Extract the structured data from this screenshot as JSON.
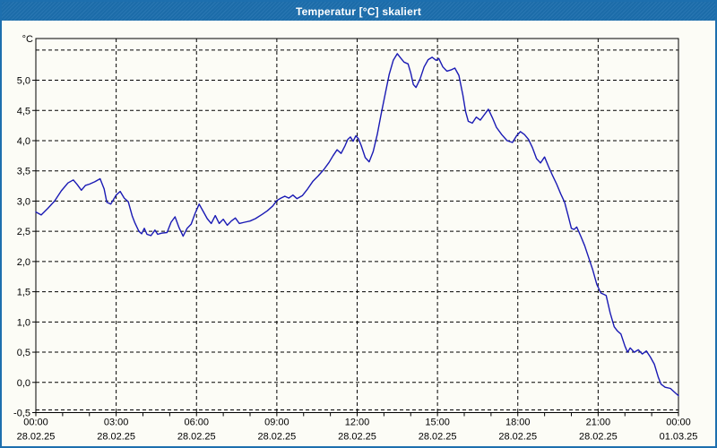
{
  "window": {
    "title": "Temperatur [°C] skaliert",
    "titlebar_color": "#1d6fae",
    "border_color": "#1d6fae",
    "background": "#fcfcf6"
  },
  "chart_data": {
    "type": "line",
    "title": "Temperatur [°C] skaliert",
    "unit_label": "°C",
    "line_color": "#1a1ab4",
    "grid": "dashed black, every 0.5 °C and every 3 hours",
    "legend": "none",
    "xlim_hours": [
      0,
      24
    ],
    "ylim": [
      -0.5,
      5.69
    ],
    "yticks": [
      5.5,
      5.0,
      4.5,
      4.0,
      3.5,
      3.0,
      2.5,
      2.0,
      1.5,
      1.0,
      0.5,
      0.0,
      -0.5
    ],
    "ytick_labels": [
      "",
      "5,0",
      "4,5",
      "4,0",
      "3,5",
      "3,0",
      "2,5",
      "2,0",
      "1,5",
      "1,0",
      "0,5",
      "0,0",
      "-0,5"
    ],
    "xticks": [
      {
        "h": 0,
        "time": "00:00",
        "date": "28.02.25"
      },
      {
        "h": 3,
        "time": "03:00",
        "date": "28.02.25"
      },
      {
        "h": 6,
        "time": "06:00",
        "date": "28.02.25"
      },
      {
        "h": 9,
        "time": "09:00",
        "date": "28.02.25"
      },
      {
        "h": 12,
        "time": "12:00",
        "date": "28.02.25"
      },
      {
        "h": 15,
        "time": "15:00",
        "date": "28.02.25"
      },
      {
        "h": 18,
        "time": "18:00",
        "date": "28.02.25"
      },
      {
        "h": 21,
        "time": "21:00",
        "date": "28.02.25"
      },
      {
        "h": 24,
        "time": "00:00",
        "date": "01.03.25"
      }
    ],
    "minor_xtick_every_hours": 1,
    "points": [
      [
        0,
        2.82
      ],
      [
        0.2,
        2.77
      ],
      [
        0.45,
        2.88
      ],
      [
        0.7,
        3.0
      ],
      [
        0.95,
        3.17
      ],
      [
        1.2,
        3.3
      ],
      [
        1.4,
        3.35
      ],
      [
        1.55,
        3.27
      ],
      [
        1.7,
        3.18
      ],
      [
        1.85,
        3.26
      ],
      [
        2.0,
        3.28
      ],
      [
        2.2,
        3.32
      ],
      [
        2.4,
        3.37
      ],
      [
        2.55,
        3.2
      ],
      [
        2.65,
        2.98
      ],
      [
        2.8,
        2.95
      ],
      [
        3.0,
        3.1
      ],
      [
        3.15,
        3.16
      ],
      [
        3.3,
        3.05
      ],
      [
        3.45,
        2.99
      ],
      [
        3.6,
        2.75
      ],
      [
        3.7,
        2.64
      ],
      [
        3.85,
        2.5
      ],
      [
        3.95,
        2.46
      ],
      [
        4.05,
        2.55
      ],
      [
        4.15,
        2.45
      ],
      [
        4.3,
        2.43
      ],
      [
        4.45,
        2.52
      ],
      [
        4.55,
        2.45
      ],
      [
        4.7,
        2.47
      ],
      [
        4.9,
        2.48
      ],
      [
        5.05,
        2.65
      ],
      [
        5.2,
        2.74
      ],
      [
        5.35,
        2.56
      ],
      [
        5.5,
        2.42
      ],
      [
        5.65,
        2.55
      ],
      [
        5.8,
        2.62
      ],
      [
        5.95,
        2.8
      ],
      [
        6.1,
        2.95
      ],
      [
        6.25,
        2.83
      ],
      [
        6.4,
        2.71
      ],
      [
        6.55,
        2.63
      ],
      [
        6.7,
        2.76
      ],
      [
        6.85,
        2.63
      ],
      [
        7.0,
        2.7
      ],
      [
        7.15,
        2.6
      ],
      [
        7.3,
        2.67
      ],
      [
        7.45,
        2.72
      ],
      [
        7.6,
        2.63
      ],
      [
        7.8,
        2.65
      ],
      [
        8.0,
        2.67
      ],
      [
        8.2,
        2.71
      ],
      [
        8.45,
        2.78
      ],
      [
        8.65,
        2.84
      ],
      [
        8.85,
        2.92
      ],
      [
        9.0,
        3.01
      ],
      [
        9.15,
        3.05
      ],
      [
        9.3,
        3.08
      ],
      [
        9.45,
        3.05
      ],
      [
        9.6,
        3.1
      ],
      [
        9.75,
        3.04
      ],
      [
        9.95,
        3.09
      ],
      [
        10.15,
        3.2
      ],
      [
        10.35,
        3.33
      ],
      [
        10.55,
        3.42
      ],
      [
        10.75,
        3.52
      ],
      [
        10.95,
        3.64
      ],
      [
        11.1,
        3.75
      ],
      [
        11.25,
        3.85
      ],
      [
        11.4,
        3.79
      ],
      [
        11.55,
        3.92
      ],
      [
        11.65,
        4.02
      ],
      [
        11.75,
        4.06
      ],
      [
        11.85,
        3.99
      ],
      [
        11.95,
        4.08
      ],
      [
        12.05,
        4.03
      ],
      [
        12.15,
        3.92
      ],
      [
        12.3,
        3.72
      ],
      [
        12.45,
        3.65
      ],
      [
        12.6,
        3.82
      ],
      [
        12.75,
        4.1
      ],
      [
        12.9,
        4.45
      ],
      [
        13.05,
        4.78
      ],
      [
        13.2,
        5.1
      ],
      [
        13.35,
        5.33
      ],
      [
        13.5,
        5.44
      ],
      [
        13.62,
        5.37
      ],
      [
        13.75,
        5.3
      ],
      [
        13.9,
        5.27
      ],
      [
        14.0,
        5.12
      ],
      [
        14.1,
        4.93
      ],
      [
        14.2,
        4.88
      ],
      [
        14.35,
        5.02
      ],
      [
        14.5,
        5.22
      ],
      [
        14.65,
        5.34
      ],
      [
        14.8,
        5.38
      ],
      [
        14.95,
        5.33
      ],
      [
        15.05,
        5.36
      ],
      [
        15.2,
        5.22
      ],
      [
        15.35,
        5.15
      ],
      [
        15.5,
        5.17
      ],
      [
        15.65,
        5.2
      ],
      [
        15.8,
        5.08
      ],
      [
        15.95,
        4.75
      ],
      [
        16.05,
        4.48
      ],
      [
        16.15,
        4.32
      ],
      [
        16.3,
        4.29
      ],
      [
        16.45,
        4.39
      ],
      [
        16.6,
        4.34
      ],
      [
        16.75,
        4.43
      ],
      [
        16.9,
        4.52
      ],
      [
        17.05,
        4.38
      ],
      [
        17.2,
        4.22
      ],
      [
        17.4,
        4.1
      ],
      [
        17.6,
        4.0
      ],
      [
        17.8,
        3.97
      ],
      [
        17.95,
        4.08
      ],
      [
        18.1,
        4.15
      ],
      [
        18.25,
        4.1
      ],
      [
        18.4,
        4.02
      ],
      [
        18.55,
        3.88
      ],
      [
        18.7,
        3.7
      ],
      [
        18.85,
        3.63
      ],
      [
        19.0,
        3.73
      ],
      [
        19.15,
        3.57
      ],
      [
        19.3,
        3.42
      ],
      [
        19.45,
        3.28
      ],
      [
        19.6,
        3.12
      ],
      [
        19.75,
        2.98
      ],
      [
        19.88,
        2.76
      ],
      [
        20.0,
        2.55
      ],
      [
        20.1,
        2.53
      ],
      [
        20.2,
        2.57
      ],
      [
        20.35,
        2.42
      ],
      [
        20.5,
        2.26
      ],
      [
        20.65,
        2.06
      ],
      [
        20.8,
        1.86
      ],
      [
        20.95,
        1.62
      ],
      [
        21.1,
        1.48
      ],
      [
        21.3,
        1.44
      ],
      [
        21.45,
        1.15
      ],
      [
        21.6,
        0.92
      ],
      [
        21.72,
        0.85
      ],
      [
        21.85,
        0.8
      ],
      [
        22.0,
        0.6
      ],
      [
        22.1,
        0.5
      ],
      [
        22.2,
        0.57
      ],
      [
        22.35,
        0.5
      ],
      [
        22.5,
        0.54
      ],
      [
        22.65,
        0.47
      ],
      [
        22.8,
        0.52
      ],
      [
        22.95,
        0.42
      ],
      [
        23.1,
        0.3
      ],
      [
        23.25,
        0.08
      ],
      [
        23.35,
        -0.03
      ],
      [
        23.5,
        -0.08
      ],
      [
        23.7,
        -0.1
      ],
      [
        23.85,
        -0.16
      ],
      [
        24.0,
        -0.22
      ]
    ]
  }
}
